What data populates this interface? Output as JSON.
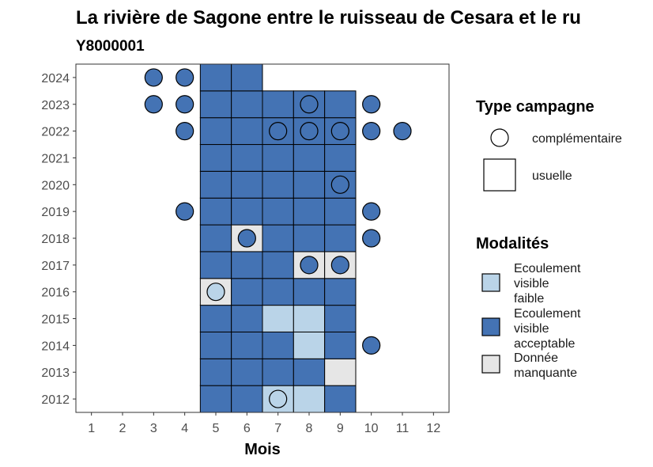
{
  "chart_data": {
    "type": "heatmap",
    "title": "La rivière de Sagone entre le ruisseau de Cesara et le ru",
    "subtitle": "Y8000001",
    "xlabel": "Mois",
    "ylabel": "",
    "x_ticks": [
      "1",
      "2",
      "3",
      "4",
      "5",
      "6",
      "7",
      "8",
      "9",
      "10",
      "11",
      "12"
    ],
    "y_ticks": [
      "2012",
      "2013",
      "2014",
      "2015",
      "2016",
      "2017",
      "2018",
      "2019",
      "2020",
      "2021",
      "2022",
      "2023",
      "2024"
    ],
    "xlim": [
      0.5,
      12.5
    ],
    "ylim": [
      2011.5,
      2024.5
    ],
    "grid": false,
    "legend_position": "right",
    "colors": {
      "faible": "#bad4e8",
      "acceptable": "#4473b4",
      "manquante": "#e6e6e6"
    },
    "tiles": [
      {
        "year": 2012,
        "month": 5,
        "m": "acceptable"
      },
      {
        "year": 2012,
        "month": 6,
        "m": "acceptable"
      },
      {
        "year": 2012,
        "month": 7,
        "m": "faible"
      },
      {
        "year": 2012,
        "month": 8,
        "m": "faible"
      },
      {
        "year": 2012,
        "month": 9,
        "m": "acceptable"
      },
      {
        "year": 2013,
        "month": 5,
        "m": "acceptable"
      },
      {
        "year": 2013,
        "month": 6,
        "m": "acceptable"
      },
      {
        "year": 2013,
        "month": 7,
        "m": "acceptable"
      },
      {
        "year": 2013,
        "month": 8,
        "m": "acceptable"
      },
      {
        "year": 2013,
        "month": 9,
        "m": "manquante"
      },
      {
        "year": 2014,
        "month": 5,
        "m": "acceptable"
      },
      {
        "year": 2014,
        "month": 6,
        "m": "acceptable"
      },
      {
        "year": 2014,
        "month": 7,
        "m": "acceptable"
      },
      {
        "year": 2014,
        "month": 8,
        "m": "faible"
      },
      {
        "year": 2014,
        "month": 9,
        "m": "acceptable"
      },
      {
        "year": 2015,
        "month": 5,
        "m": "acceptable"
      },
      {
        "year": 2015,
        "month": 6,
        "m": "acceptable"
      },
      {
        "year": 2015,
        "month": 7,
        "m": "faible"
      },
      {
        "year": 2015,
        "month": 8,
        "m": "faible"
      },
      {
        "year": 2015,
        "month": 9,
        "m": "acceptable"
      },
      {
        "year": 2016,
        "month": 5,
        "m": "manquante"
      },
      {
        "year": 2016,
        "month": 6,
        "m": "acceptable"
      },
      {
        "year": 2016,
        "month": 7,
        "m": "acceptable"
      },
      {
        "year": 2016,
        "month": 8,
        "m": "acceptable"
      },
      {
        "year": 2016,
        "month": 9,
        "m": "acceptable"
      },
      {
        "year": 2017,
        "month": 5,
        "m": "acceptable"
      },
      {
        "year": 2017,
        "month": 6,
        "m": "acceptable"
      },
      {
        "year": 2017,
        "month": 7,
        "m": "acceptable"
      },
      {
        "year": 2017,
        "month": 8,
        "m": "manquante"
      },
      {
        "year": 2017,
        "month": 9,
        "m": "manquante"
      },
      {
        "year": 2018,
        "month": 5,
        "m": "acceptable"
      },
      {
        "year": 2018,
        "month": 6,
        "m": "manquante"
      },
      {
        "year": 2018,
        "month": 7,
        "m": "acceptable"
      },
      {
        "year": 2018,
        "month": 8,
        "m": "acceptable"
      },
      {
        "year": 2018,
        "month": 9,
        "m": "acceptable"
      },
      {
        "year": 2019,
        "month": 5,
        "m": "acceptable"
      },
      {
        "year": 2019,
        "month": 6,
        "m": "acceptable"
      },
      {
        "year": 2019,
        "month": 7,
        "m": "acceptable"
      },
      {
        "year": 2019,
        "month": 8,
        "m": "acceptable"
      },
      {
        "year": 2019,
        "month": 9,
        "m": "acceptable"
      },
      {
        "year": 2020,
        "month": 5,
        "m": "acceptable"
      },
      {
        "year": 2020,
        "month": 6,
        "m": "acceptable"
      },
      {
        "year": 2020,
        "month": 7,
        "m": "acceptable"
      },
      {
        "year": 2020,
        "month": 8,
        "m": "acceptable"
      },
      {
        "year": 2020,
        "month": 9,
        "m": "acceptable"
      },
      {
        "year": 2021,
        "month": 5,
        "m": "acceptable"
      },
      {
        "year": 2021,
        "month": 6,
        "m": "acceptable"
      },
      {
        "year": 2021,
        "month": 7,
        "m": "acceptable"
      },
      {
        "year": 2021,
        "month": 8,
        "m": "acceptable"
      },
      {
        "year": 2021,
        "month": 9,
        "m": "acceptable"
      },
      {
        "year": 2022,
        "month": 5,
        "m": "acceptable"
      },
      {
        "year": 2022,
        "month": 6,
        "m": "acceptable"
      },
      {
        "year": 2022,
        "month": 7,
        "m": "acceptable"
      },
      {
        "year": 2022,
        "month": 8,
        "m": "acceptable"
      },
      {
        "year": 2022,
        "month": 9,
        "m": "acceptable"
      },
      {
        "year": 2023,
        "month": 5,
        "m": "acceptable"
      },
      {
        "year": 2023,
        "month": 6,
        "m": "acceptable"
      },
      {
        "year": 2023,
        "month": 7,
        "m": "acceptable"
      },
      {
        "year": 2023,
        "month": 8,
        "m": "acceptable"
      },
      {
        "year": 2023,
        "month": 9,
        "m": "acceptable"
      },
      {
        "year": 2024,
        "month": 5,
        "m": "acceptable"
      },
      {
        "year": 2024,
        "month": 6,
        "m": "acceptable"
      }
    ],
    "circles": [
      {
        "year": 2012,
        "month": 7,
        "m": "faible"
      },
      {
        "year": 2016,
        "month": 5,
        "m": "faible"
      },
      {
        "year": 2014,
        "month": 10,
        "m": "acceptable"
      },
      {
        "year": 2017,
        "month": 8,
        "m": "acceptable"
      },
      {
        "year": 2017,
        "month": 9,
        "m": "acceptable"
      },
      {
        "year": 2018,
        "month": 6,
        "m": "acceptable"
      },
      {
        "year": 2018,
        "month": 10,
        "m": "acceptable"
      },
      {
        "year": 2019,
        "month": 4,
        "m": "acceptable"
      },
      {
        "year": 2019,
        "month": 10,
        "m": "acceptable"
      },
      {
        "year": 2020,
        "month": 9,
        "m": "acceptable"
      },
      {
        "year": 2022,
        "month": 4,
        "m": "acceptable"
      },
      {
        "year": 2022,
        "month": 7,
        "m": "acceptable"
      },
      {
        "year": 2022,
        "month": 8,
        "m": "acceptable"
      },
      {
        "year": 2022,
        "month": 9,
        "m": "acceptable"
      },
      {
        "year": 2022,
        "month": 10,
        "m": "acceptable"
      },
      {
        "year": 2022,
        "month": 11,
        "m": "acceptable"
      },
      {
        "year": 2023,
        "month": 3,
        "m": "acceptable"
      },
      {
        "year": 2023,
        "month": 4,
        "m": "acceptable"
      },
      {
        "year": 2023,
        "month": 8,
        "m": "acceptable"
      },
      {
        "year": 2023,
        "month": 10,
        "m": "acceptable"
      },
      {
        "year": 2024,
        "month": 3,
        "m": "acceptable"
      },
      {
        "year": 2024,
        "month": 4,
        "m": "acceptable"
      }
    ],
    "legend": {
      "type_title": "Type campagne",
      "type_items": [
        {
          "shape": "circle",
          "label": "complémentaire"
        },
        {
          "shape": "square",
          "label": "usuelle"
        }
      ],
      "mod_title": "Modalités",
      "mod_items": [
        {
          "key": "faible",
          "lines": [
            "Ecoulement",
            "visible",
            "faible"
          ]
        },
        {
          "key": "acceptable",
          "lines": [
            "Ecoulement",
            "visible",
            "acceptable"
          ]
        },
        {
          "key": "manquante",
          "lines": [
            "Donnée",
            "manquante"
          ]
        }
      ]
    }
  }
}
